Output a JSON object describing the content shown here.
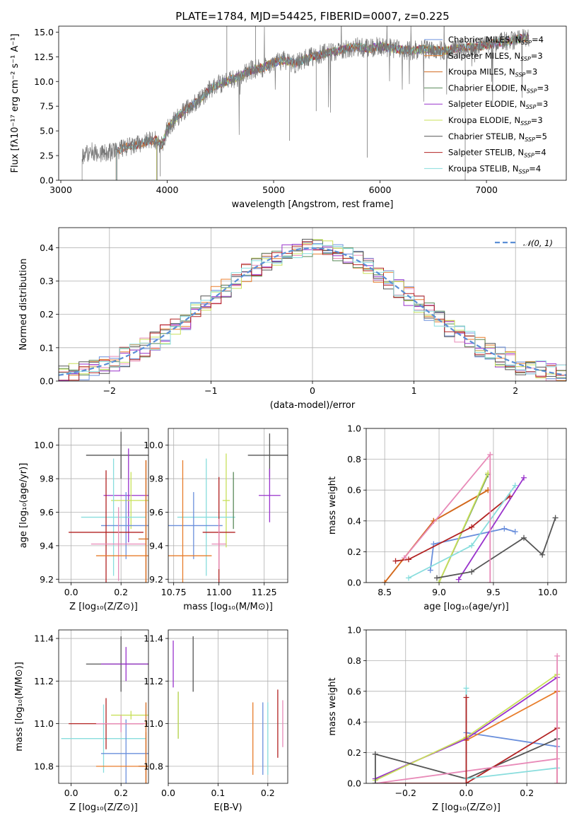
{
  "colors": {
    "chabrier_miles": "#6a8fdc",
    "salpeter_miles": "#e87d2b",
    "kroupa_miles": "#d2691e",
    "chabrier_elodie": "#5a8a5a",
    "salpeter_elodie": "#9932cc",
    "kroupa_elodie": "#c8e05a",
    "chabrier_stelib": "#555555",
    "salpeter_stelib": "#b22222",
    "kroupa_stelib": "#88dddd",
    "pink": "#e88ab8",
    "gauss": "#5b8fd6"
  },
  "chart_data": [
    {
      "id": "spectrum",
      "type": "line",
      "title": "PLATE=1784, MJD=54425, FIBERID=0007, z=0.225",
      "xlabel": "wavelength [Angstrom, rest frame]",
      "ylabel": "Flux [fλ10⁻¹⁷ erg cm⁻² s⁻¹ A⁻¹]",
      "xlim": [
        2980,
        7750
      ],
      "ylim": [
        0,
        15.6
      ],
      "xticks": [
        "3000",
        "4000",
        "5000",
        "6000",
        "7000"
      ],
      "yticks": [
        "0.0",
        "2.5",
        "5.0",
        "7.5",
        "10.0",
        "12.5",
        "15.0"
      ],
      "xtick_values": [
        3000,
        4000,
        5000,
        6000,
        7000
      ],
      "ytick_values": [
        0,
        2.5,
        5,
        7.5,
        10,
        12.5,
        15
      ],
      "continuum": {
        "x": [
          3200,
          3300,
          3400,
          3500,
          3600,
          3700,
          3800,
          3900,
          3950,
          4000,
          4100,
          4200,
          4300,
          4400,
          4500,
          4600,
          4700,
          4800,
          4900,
          5000,
          5100,
          5200,
          5300,
          5400,
          5500,
          5600,
          5700,
          5800,
          5900,
          6000,
          6100,
          6200,
          6300,
          6400,
          6500,
          6600,
          6700,
          6800,
          6900,
          7000,
          7100,
          7200,
          7300,
          7400
        ],
        "y": [
          2.5,
          2.9,
          2.7,
          2.9,
          3.3,
          3.5,
          3.9,
          4.1,
          3.5,
          5.2,
          6.5,
          7.4,
          8.1,
          9.2,
          9.8,
          10.2,
          10.6,
          11.2,
          11.4,
          11.9,
          12.2,
          11.8,
          12.3,
          12.6,
          12.9,
          13.1,
          13.4,
          13.5,
          13.3,
          13.6,
          13.4,
          13.2,
          13.1,
          13.3,
          13.2,
          13.1,
          13.3,
          13.4,
          13.5,
          13.7,
          13.9,
          14.1,
          14.3,
          14.5
        ]
      },
      "legend": [
        {
          "name": "Chabrier MILES",
          "n": "4",
          "color_key": "chabrier_miles"
        },
        {
          "name": "Salpeter MILES",
          "n": "3",
          "color_key": "salpeter_miles"
        },
        {
          "name": "Kroupa MILES",
          "n": "3",
          "color_key": "kroupa_miles"
        },
        {
          "name": "Chabrier ELODIE",
          "n": "3",
          "color_key": "chabrier_elodie"
        },
        {
          "name": "Salpeter ELODIE",
          "n": "3",
          "color_key": "salpeter_elodie"
        },
        {
          "name": "Kroupa ELODIE",
          "n": "3",
          "color_key": "kroupa_elodie"
        },
        {
          "name": "Chabrier STELIB",
          "n": "5",
          "color_key": "chabrier_stelib"
        },
        {
          "name": "Salpeter STELIB",
          "n": "4",
          "color_key": "salpeter_stelib"
        },
        {
          "name": "Kroupa STELIB",
          "n": "4",
          "color_key": "kroupa_stelib"
        }
      ],
      "legend_location": "right"
    },
    {
      "id": "residuals",
      "type": "histogram",
      "xlabel": "(data-model)/error",
      "ylabel": "Normed distribution",
      "xlim": [
        -2.5,
        2.5
      ],
      "ylim": [
        0,
        0.46
      ],
      "xticks": [
        "−2",
        "−1",
        "0",
        "1",
        "2"
      ],
      "xtick_values": [
        -2,
        -1,
        0,
        1,
        2
      ],
      "yticks": [
        "0.0",
        "0.1",
        "0.2",
        "0.3",
        "0.4"
      ],
      "ytick_values": [
        0,
        0.1,
        0.2,
        0.3,
        0.4
      ],
      "gauss_label": "𝒩(0, 1)",
      "legend_location": "top-right",
      "grid": true,
      "bin_width": 0.1
    },
    {
      "id": "age_vs_Z",
      "type": "errorbar",
      "xlabel": "Z [log₁₀(Z/Z⊙)]",
      "ylabel": "age  [log₁₀(age/yr)]",
      "xlim": [
        -0.05,
        0.31
      ],
      "ylim": [
        9.18,
        10.1
      ],
      "xticks": [
        "0.0",
        "0.2"
      ],
      "xtick_values": [
        0,
        0.2
      ],
      "yticks": [
        "9.2",
        "9.4",
        "9.6",
        "9.8",
        "10.0"
      ],
      "ytick_values": [
        9.2,
        9.4,
        9.6,
        9.8,
        10.0
      ],
      "points": [
        {
          "c": "chabrier_stelib",
          "x": 0.2,
          "y": 9.94,
          "xe": 0.14,
          "ye": 0.14
        },
        {
          "c": "salpeter_elodie",
          "x": 0.23,
          "y": 9.7,
          "xe": 0.1,
          "ye": 0.28
        },
        {
          "c": "kroupa_elodie",
          "x": 0.24,
          "y": 9.67,
          "xe": 0.08,
          "ye": 0.17
        },
        {
          "c": "kroupa_stelib",
          "x": 0.17,
          "y": 9.57,
          "xe": 0.13,
          "ye": 0.35
        },
        {
          "c": "chabrier_miles",
          "x": 0.22,
          "y": 9.52,
          "xe": 0.1,
          "ye": 0.2
        },
        {
          "c": "salpeter_stelib",
          "x": 0.14,
          "y": 9.48,
          "xe": 0.15,
          "ye": 0.37
        },
        {
          "c": "pink",
          "x": 0.19,
          "y": 9.41,
          "xe": 0.11,
          "ye": 0.22
        },
        {
          "c": "salpeter_miles",
          "x": 0.3,
          "y": 9.34,
          "xe": 0.2,
          "ye": 0.57
        },
        {
          "c": "kroupa_miles",
          "x": 0.3,
          "y": 9.44,
          "xe": 0.03,
          "ye": 0.47
        }
      ]
    },
    {
      "id": "age_vs_mass",
      "type": "errorbar",
      "xlabel": "mass [log₁₀(M/M⊙)]",
      "ylabel": "",
      "xlim": [
        10.72,
        11.38
      ],
      "ylim": [
        9.18,
        10.1
      ],
      "xticks": [
        "10.75",
        "11.00",
        "11.25"
      ],
      "xtick_values": [
        10.75,
        11.0,
        11.25
      ],
      "yticks": [
        "9.2",
        "9.4",
        "9.6",
        "9.8",
        "10.0"
      ],
      "ytick_values": [
        9.2,
        9.4,
        9.6,
        9.8,
        10.0
      ],
      "points": [
        {
          "c": "chabrier_stelib",
          "x": 11.28,
          "y": 9.94,
          "xe": 0.12,
          "ye": 0.13
        },
        {
          "c": "salpeter_elodie",
          "x": 11.28,
          "y": 9.7,
          "xe": 0.06,
          "ye": 0.16
        },
        {
          "c": "kroupa_elodie",
          "x": 11.04,
          "y": 9.67,
          "xe": 0.02,
          "ye": 0.28
        },
        {
          "c": "kroupa_stelib",
          "x": 10.93,
          "y": 9.57,
          "xe": 0.16,
          "ye": 0.35
        },
        {
          "c": "chabrier_miles",
          "x": 10.86,
          "y": 9.52,
          "xe": 0.16,
          "ye": 0.2
        },
        {
          "c": "salpeter_stelib",
          "x": 11.0,
          "y": 9.48,
          "xe": 0.09,
          "ye": 0.33
        },
        {
          "c": "pink",
          "x": 11.0,
          "y": 9.41,
          "xe": 0.04,
          "ye": 0.15
        },
        {
          "c": "salpeter_miles",
          "x": 10.8,
          "y": 9.34,
          "xe": 0.16,
          "ye": 0.57
        },
        {
          "c": "chabrier_elodie",
          "x": 11.08,
          "y": 9.67,
          "xe": 0.0,
          "ye": 0.17
        }
      ]
    },
    {
      "id": "mw_vs_age",
      "type": "line",
      "xlabel": "age  [log₁₀(age/yr)]",
      "ylabel": "mass weight",
      "xlim": [
        8.33,
        10.17
      ],
      "ylim": [
        0,
        1.0
      ],
      "xticks": [
        "8.5",
        "9.0",
        "9.5",
        "10.0"
      ],
      "xtick_values": [
        8.5,
        9.0,
        9.5,
        10.0
      ],
      "yticks": [
        "0.0",
        "0.2",
        "0.4",
        "0.6",
        "0.8",
        "1.0"
      ],
      "ytick_values": [
        0,
        0.2,
        0.4,
        0.6,
        0.8,
        1.0
      ],
      "series": [
        {
          "c": "chabrier_miles",
          "x": [
            8.92,
            8.95,
            9.6,
            9.7
          ],
          "y": [
            0.08,
            0.25,
            0.35,
            0.33
          ]
        },
        {
          "c": "salpeter_miles",
          "x": [
            8.5,
            8.95,
            9.45
          ],
          "y": [
            0.0,
            0.4,
            0.6
          ]
        },
        {
          "c": "kroupa_miles",
          "x": [
            8.5,
            8.95,
            9.45
          ],
          "y": [
            0.0,
            0.4,
            0.6
          ]
        },
        {
          "c": "chabrier_elodie",
          "x": [
            9.0,
            9.45
          ],
          "y": [
            0.0,
            0.7
          ]
        },
        {
          "c": "salpeter_elodie",
          "x": [
            9.18,
            9.78
          ],
          "y": [
            0.02,
            0.68
          ]
        },
        {
          "c": "kroupa_elodie",
          "x": [
            9.0,
            9.45
          ],
          "y": [
            0.0,
            0.71
          ]
        },
        {
          "c": "chabrier_stelib",
          "x": [
            8.98,
            9.3,
            9.78,
            9.95,
            10.07
          ],
          "y": [
            0.03,
            0.07,
            0.29,
            0.18,
            0.42
          ]
        },
        {
          "c": "salpeter_stelib",
          "x": [
            8.6,
            8.72,
            9.3,
            9.65
          ],
          "y": [
            0.14,
            0.15,
            0.36,
            0.56
          ]
        },
        {
          "c": "kroupa_stelib",
          "x": [
            8.72,
            9.3,
            9.7
          ],
          "y": [
            0.03,
            0.24,
            0.63
          ]
        },
        {
          "c": "pink",
          "x": [
            8.68,
            9.47,
            9.47
          ],
          "y": [
            0.16,
            0.83,
            0.0
          ]
        }
      ]
    },
    {
      "id": "mass_vs_Z",
      "type": "errorbar",
      "xlabel": "Z [log₁₀(Z/Z⊙)]",
      "ylabel": "mass [log₁₀(M/M⊙)]",
      "xlim": [
        -0.05,
        0.31
      ],
      "ylim": [
        10.72,
        11.44
      ],
      "xticks": [
        "0.0",
        "0.2"
      ],
      "xtick_values": [
        0,
        0.2
      ],
      "yticks": [
        "10.8",
        "11.0",
        "11.2",
        "11.4"
      ],
      "ytick_values": [
        10.8,
        11.0,
        11.2,
        11.4
      ],
      "points": [
        {
          "c": "chabrier_stelib",
          "x": 0.2,
          "y": 11.28,
          "xe": 0.14,
          "ye": 0.13
        },
        {
          "c": "salpeter_elodie",
          "x": 0.22,
          "y": 11.28,
          "xe": 0.1,
          "ye": 0.08
        },
        {
          "c": "kroupa_elodie",
          "x": 0.24,
          "y": 11.04,
          "xe": 0.08,
          "ye": 0.02
        },
        {
          "c": "kroupa_stelib",
          "x": 0.13,
          "y": 10.93,
          "xe": 0.17,
          "ye": 0.16
        },
        {
          "c": "chabrier_miles",
          "x": 0.22,
          "y": 10.86,
          "xe": 0.1,
          "ye": 0.16
        },
        {
          "c": "salpeter_stelib",
          "x": 0.14,
          "y": 11.0,
          "xe": 0.15,
          "ye": 0.12
        },
        {
          "c": "pink",
          "x": 0.2,
          "y": 11.0,
          "xe": 0.1,
          "ye": 0.04
        },
        {
          "c": "salpeter_miles",
          "x": 0.3,
          "y": 10.8,
          "xe": 0.2,
          "ye": 0.16
        },
        {
          "c": "kroupa_miles",
          "x": 0.3,
          "y": 10.8,
          "xe": 0.03,
          "ye": 0.3
        }
      ]
    },
    {
      "id": "mass_vs_ebv",
      "type": "errorbar",
      "xlabel": "E(B-V)",
      "ylabel": "",
      "xlim": [
        0,
        0.24
      ],
      "ylim": [
        10.72,
        11.44
      ],
      "xticks": [
        "0.0",
        "0.1",
        "0.2"
      ],
      "xtick_values": [
        0,
        0.1,
        0.2
      ],
      "yticks": [
        "10.8",
        "11.0",
        "11.2",
        "11.4"
      ],
      "ytick_values": [
        10.8,
        11.0,
        11.2,
        11.4
      ],
      "points": [
        {
          "c": "salpeter_elodie",
          "x": 0.01,
          "y": 11.28,
          "xe": 0,
          "ye": 0.11
        },
        {
          "c": "chabrier_stelib",
          "x": 0.05,
          "y": 11.28,
          "xe": 0,
          "ye": 0.13
        },
        {
          "c": "chabrier_elodie",
          "x": 0.02,
          "y": 11.04,
          "xe": 0,
          "ye": 0.11
        },
        {
          "c": "kroupa_elodie",
          "x": 0.02,
          "y": 11.04,
          "xe": 0,
          "ye": 0.11
        },
        {
          "c": "salpeter_miles",
          "x": 0.17,
          "y": 10.93,
          "xe": 0,
          "ye": 0.17
        },
        {
          "c": "kroupa_stelib",
          "x": 0.2,
          "y": 10.93,
          "xe": 0,
          "ye": 0.17
        },
        {
          "c": "salpeter_stelib",
          "x": 0.22,
          "y": 11.0,
          "xe": 0,
          "ye": 0.16
        },
        {
          "c": "pink",
          "x": 0.23,
          "y": 11.0,
          "xe": 0,
          "ye": 0.11
        },
        {
          "c": "chabrier_miles",
          "x": 0.19,
          "y": 10.93,
          "xe": 0,
          "ye": 0.17
        }
      ]
    },
    {
      "id": "mw_vs_Z",
      "type": "line",
      "xlabel": "Z [log₁₀(Z/Z⊙)]",
      "ylabel": "mass weight",
      "xlim": [
        -0.33,
        0.33
      ],
      "ylim": [
        0,
        1.0
      ],
      "xticks": [
        "−0.2",
        "0.0",
        "0.2"
      ],
      "xtick_values": [
        -0.2,
        0.0,
        0.2
      ],
      "yticks": [
        "0.0",
        "0.2",
        "0.4",
        "0.6",
        "0.8",
        "1.0"
      ],
      "ytick_values": [
        0,
        0.2,
        0.4,
        0.6,
        0.8,
        1.0
      ],
      "series": [
        {
          "c": "chabrier_miles",
          "x": [
            0.0,
            0.3
          ],
          "y": [
            0.33,
            0.24
          ]
        },
        {
          "c": "salpeter_miles",
          "x": [
            0.0,
            0.3
          ],
          "y": [
            0.28,
            0.6
          ]
        },
        {
          "c": "kroupa_miles",
          "x": [
            0.3,
            0.3
          ],
          "y": [
            0.0,
            0.6
          ]
        },
        {
          "c": "salpeter_elodie",
          "x": [
            -0.3,
            0.0,
            0.3
          ],
          "y": [
            0.03,
            0.29,
            0.69
          ]
        },
        {
          "c": "kroupa_elodie",
          "x": [
            -0.3,
            0.0,
            0.3
          ],
          "y": [
            0.02,
            0.3,
            0.71
          ]
        },
        {
          "c": "chabrier_stelib",
          "x": [
            -0.3,
            0.0,
            0.3
          ],
          "y": [
            0.19,
            0.03,
            0.29
          ]
        },
        {
          "c": "salpeter_stelib",
          "x": [
            -0.3,
            0.0,
            0.3
          ],
          "y": [
            0.0,
            0.0,
            0.36
          ]
        },
        {
          "c": "kroupa_stelib",
          "x": [
            0.0,
            0.3
          ],
          "y": [
            0.03,
            0.1
          ]
        },
        {
          "c": "pink",
          "x": [
            -0.3,
            0.3
          ],
          "y": [
            0.0,
            0.16
          ]
        },
        {
          "c": "kroupa_stelib",
          "x": [
            0.0,
            0.0
          ],
          "y": [
            0.0,
            0.62
          ]
        },
        {
          "c": "salpeter_stelib",
          "x": [
            0.0,
            0.0
          ],
          "y": [
            0.0,
            0.56
          ]
        },
        {
          "c": "pink",
          "x": [
            0.3,
            0.3
          ],
          "y": [
            0.0,
            0.83
          ]
        },
        {
          "c": "chabrier_stelib",
          "x": [
            -0.3,
            -0.3
          ],
          "y": [
            0.0,
            0.19
          ]
        }
      ]
    }
  ]
}
